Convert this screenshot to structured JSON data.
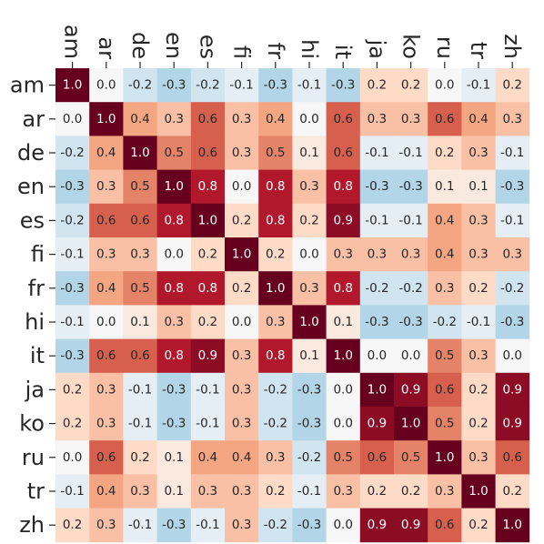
{
  "chart_data": {
    "type": "heatmap",
    "title": "",
    "xlabel": "",
    "ylabel": "",
    "x_labels": [
      "am",
      "ar",
      "de",
      "en",
      "es",
      "fi",
      "fr",
      "hi",
      "it",
      "ja",
      "ko",
      "ru",
      "tr",
      "zh"
    ],
    "y_labels": [
      "am",
      "ar",
      "de",
      "en",
      "es",
      "fi",
      "fr",
      "hi",
      "it",
      "ja",
      "ko",
      "ru",
      "tr",
      "zh"
    ],
    "x_tick_position": "top",
    "x_tick_rotation": 90,
    "value_range": [
      -1,
      1
    ],
    "colormap": "RdBu_r",
    "colormap_stops": [
      [
        -1.0,
        "#053061"
      ],
      [
        -0.8,
        "#2166ac"
      ],
      [
        -0.6,
        "#4393c3"
      ],
      [
        -0.4,
        "#92c5de"
      ],
      [
        -0.2,
        "#d1e5f0"
      ],
      [
        0.0,
        "#f7f7f7"
      ],
      [
        0.2,
        "#fddbc7"
      ],
      [
        0.4,
        "#f4a582"
      ],
      [
        0.6,
        "#d6604d"
      ],
      [
        0.8,
        "#b2182b"
      ],
      [
        1.0,
        "#67001f"
      ]
    ],
    "annotation_format": "{:.1f}",
    "values": [
      [
        1.0,
        0.0,
        -0.2,
        -0.3,
        -0.2,
        -0.1,
        -0.3,
        -0.1,
        -0.3,
        0.2,
        0.2,
        0.0,
        -0.1,
        0.2
      ],
      [
        0.0,
        1.0,
        0.4,
        0.3,
        0.6,
        0.3,
        0.4,
        0.0,
        0.6,
        0.3,
        0.3,
        0.6,
        0.4,
        0.3
      ],
      [
        -0.2,
        0.4,
        1.0,
        0.5,
        0.6,
        0.3,
        0.5,
        0.1,
        0.6,
        -0.1,
        -0.1,
        0.2,
        0.3,
        -0.1
      ],
      [
        -0.3,
        0.3,
        0.5,
        1.0,
        0.8,
        0.0,
        0.8,
        0.3,
        0.8,
        -0.3,
        -0.3,
        0.1,
        0.1,
        -0.3
      ],
      [
        -0.2,
        0.6,
        0.6,
        0.8,
        1.0,
        0.2,
        0.8,
        0.2,
        0.9,
        -0.1,
        -0.1,
        0.4,
        0.3,
        -0.1
      ],
      [
        -0.1,
        0.3,
        0.3,
        0.0,
        0.2,
        1.0,
        0.2,
        0.0,
        0.3,
        0.3,
        0.3,
        0.4,
        0.3,
        0.3
      ],
      [
        -0.3,
        0.4,
        0.5,
        0.8,
        0.8,
        0.2,
        1.0,
        0.3,
        0.8,
        -0.2,
        -0.2,
        0.3,
        0.2,
        -0.2
      ],
      [
        -0.1,
        0.0,
        0.1,
        0.3,
        0.2,
        0.0,
        0.3,
        1.0,
        0.1,
        -0.3,
        -0.3,
        -0.2,
        -0.1,
        -0.3
      ],
      [
        -0.3,
        0.6,
        0.6,
        0.8,
        0.9,
        0.3,
        0.8,
        0.1,
        1.0,
        0.0,
        0.0,
        0.5,
        0.3,
        0.0
      ],
      [
        0.2,
        0.3,
        -0.1,
        -0.3,
        -0.1,
        0.3,
        -0.2,
        -0.3,
        0.0,
        1.0,
        0.9,
        0.6,
        0.2,
        0.9
      ],
      [
        0.2,
        0.3,
        -0.1,
        -0.3,
        -0.1,
        0.3,
        -0.2,
        -0.3,
        0.0,
        0.9,
        1.0,
        0.5,
        0.2,
        0.9
      ],
      [
        0.0,
        0.6,
        0.2,
        0.1,
        0.4,
        0.4,
        0.3,
        -0.2,
        0.5,
        0.6,
        0.5,
        1.0,
        0.3,
        0.6
      ],
      [
        -0.1,
        0.4,
        0.3,
        0.1,
        0.3,
        0.3,
        0.2,
        -0.1,
        0.3,
        0.2,
        0.2,
        0.3,
        1.0,
        0.2
      ],
      [
        0.2,
        0.3,
        -0.1,
        -0.3,
        -0.1,
        0.3,
        -0.2,
        -0.3,
        0.0,
        0.9,
        0.9,
        0.6,
        0.2,
        1.0
      ]
    ]
  }
}
